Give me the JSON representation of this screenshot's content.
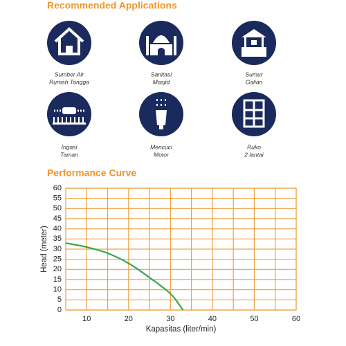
{
  "applications": {
    "title": "Recommended Applications",
    "items": [
      {
        "lines": [
          "Sumber Air",
          "Rumah Tangga"
        ]
      },
      {
        "lines": [
          "Sanitasi",
          "Masjid"
        ]
      },
      {
        "lines": [
          "Sumur",
          "Galian"
        ]
      },
      {
        "lines": [
          "Irigasi",
          "Taman"
        ]
      },
      {
        "lines": [
          "Mencuci",
          "Motor"
        ]
      },
      {
        "lines": [
          "Ruko",
          "2 lantai"
        ]
      }
    ]
  },
  "chart_data": {
    "type": "line",
    "title": "Performance Curve",
    "x_label": "Kapasitas (liter/min)",
    "y_label": "Head (meter)",
    "x": [
      5,
      10,
      15,
      20,
      25,
      30,
      33
    ],
    "series": [
      {
        "name": "Head",
        "color": "#3aa64a",
        "values": [
          33,
          31,
          28,
          23,
          16,
          8,
          0
        ]
      }
    ],
    "xlim": [
      5,
      60
    ],
    "xticks": [
      10,
      20,
      30,
      40,
      50,
      60
    ],
    "x_minor_grid": [
      15,
      25,
      35,
      45,
      55
    ],
    "ylim": [
      0,
      60
    ],
    "yticks": [
      0,
      5,
      10,
      15,
      20,
      25,
      30,
      35,
      40,
      45,
      50,
      55,
      60
    ],
    "grid": true,
    "grid_color": "#f0a040"
  }
}
